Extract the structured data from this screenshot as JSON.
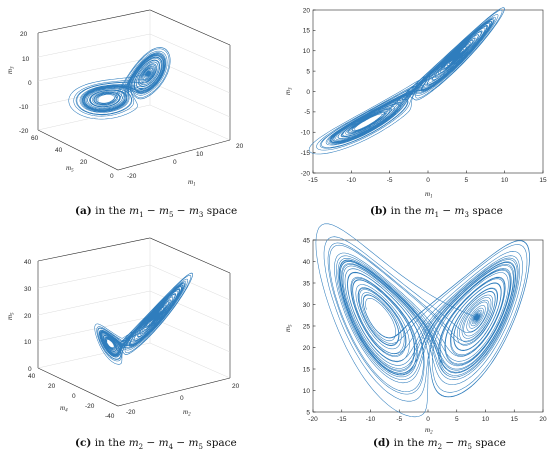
{
  "colors": {
    "trajectory": "#2f7dbd",
    "axis": "#262626"
  },
  "panels": {
    "a": {
      "caption_tag": "(a)",
      "caption_text": "in the m1 − m5 − m3 space",
      "caption_pre": "in the ",
      "caption_post": " space",
      "axes": {
        "x": "m",
        "x_sub": "1",
        "y": "m",
        "y_sub": "5",
        "z": "m",
        "z_sub": "3"
      },
      "x_ticks": [
        "-20",
        "0",
        "10",
        "20"
      ],
      "y_ticks": [
        "0",
        "20",
        "40",
        "60"
      ],
      "z_ticks": [
        "-20",
        "-10",
        "0",
        "10",
        "20"
      ]
    },
    "b": {
      "caption_tag": "(b)",
      "caption_pre": "in the ",
      "caption_post": " space",
      "axes": {
        "x": "m",
        "x_sub": "1",
        "y": "m",
        "y_sub": "3"
      },
      "x_ticks": [
        "-15",
        "-10",
        "-5",
        "0",
        "5",
        "10",
        "15"
      ],
      "y_ticks": [
        "-20",
        "-15",
        "-10",
        "-5",
        "0",
        "5",
        "10",
        "15",
        "20"
      ]
    },
    "c": {
      "caption_tag": "(c)",
      "caption_pre": "in the ",
      "caption_post": " space",
      "axes": {
        "x": "m",
        "x_sub": "2",
        "y": "m",
        "y_sub": "4",
        "z": "m",
        "z_sub": "5"
      },
      "x_ticks": [
        "-20",
        "0",
        "20"
      ],
      "y_ticks": [
        "-40",
        "-20",
        "0",
        "20",
        "40"
      ],
      "z_ticks": [
        "0",
        "10",
        "20",
        "30",
        "40"
      ]
    },
    "d": {
      "caption_tag": "(d)",
      "caption_pre": "in the ",
      "caption_post": " space",
      "axes": {
        "x": "m",
        "x_sub": "2",
        "y": "m",
        "y_sub": "5"
      },
      "x_ticks": [
        "-20",
        "-15",
        "-10",
        "-5",
        "0",
        "5",
        "10",
        "15",
        "20"
      ],
      "y_ticks": [
        "5",
        "10",
        "15",
        "20",
        "25",
        "30",
        "35",
        "40",
        "45"
      ]
    }
  }
}
